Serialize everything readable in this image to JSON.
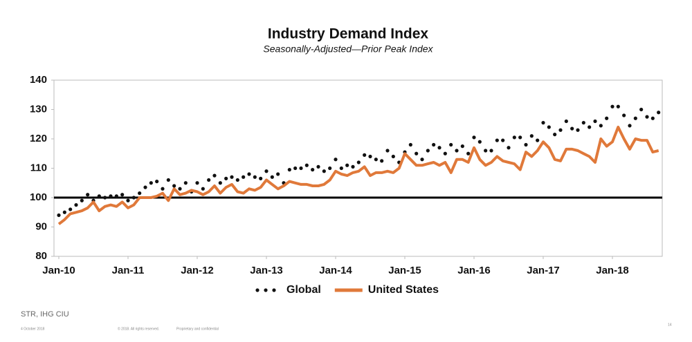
{
  "chart_data": {
    "type": "line",
    "title": "Industry Demand Index",
    "subtitle": "Seasonally-Adjusted—Prior Peak Index",
    "categories": [
      "Jan-10",
      null,
      null,
      null,
      null,
      null,
      null,
      null,
      null,
      null,
      null,
      null,
      "Jan-11",
      null,
      null,
      null,
      null,
      null,
      null,
      null,
      null,
      null,
      null,
      null,
      "Jan-12",
      null,
      null,
      null,
      null,
      null,
      null,
      null,
      null,
      null,
      null,
      null,
      "Jan-13",
      null,
      null,
      null,
      null,
      null,
      null,
      null,
      null,
      null,
      null,
      null,
      "Jan-14",
      null,
      null,
      null,
      null,
      null,
      null,
      null,
      null,
      null,
      null,
      null,
      "Jan-15",
      null,
      null,
      null,
      null,
      null,
      null,
      null,
      null,
      null,
      null,
      null,
      "Jan-16",
      null,
      null,
      null,
      null,
      null,
      null,
      null,
      null,
      null,
      null,
      null,
      "Jan-17",
      null,
      null,
      null,
      null,
      null,
      null,
      null,
      null,
      null,
      null,
      null,
      "Jan-18",
      null,
      null,
      null,
      null,
      null,
      null,
      null,
      null
    ],
    "series": [
      {
        "name": "Global",
        "style": "dots",
        "color": "#111111",
        "values": [
          94,
          95,
          96,
          97.5,
          99,
          101,
          99,
          100.5,
          100,
          100.5,
          100.5,
          101,
          99,
          100,
          101.5,
          103.5,
          105,
          105.5,
          103,
          106,
          104,
          103,
          105,
          102,
          105,
          103,
          106,
          107.5,
          105,
          106.5,
          107,
          106,
          107,
          108,
          107,
          106.5,
          109,
          107,
          108,
          105,
          109.5,
          110,
          110,
          111,
          109.5,
          110.5,
          109,
          110,
          113,
          110,
          111,
          110.5,
          112,
          114.5,
          114,
          113,
          112.5,
          116,
          114,
          112,
          115.5,
          118,
          115,
          113,
          116,
          118,
          117,
          115,
          118,
          116,
          117.5,
          115,
          120.5,
          119,
          116,
          116,
          119.5,
          119.5,
          117,
          120.5,
          120.5,
          118,
          121,
          119.5,
          125.5,
          124,
          121.5,
          123,
          126,
          123.5,
          123,
          125.5,
          124,
          126,
          124.5,
          127,
          131,
          131,
          128,
          124.5,
          127,
          130,
          127.5,
          127,
          129
        ]
      },
      {
        "name": "United States",
        "style": "line",
        "color": "#e0793a",
        "values": [
          91,
          92.5,
          94.5,
          95,
          95.5,
          96.5,
          98.5,
          95.5,
          97,
          97.5,
          97,
          98.5,
          96.5,
          97.5,
          100,
          100,
          100,
          100.5,
          101.5,
          99,
          103,
          101,
          101.5,
          102.5,
          102,
          101,
          102,
          104,
          101.5,
          103.5,
          104.5,
          102,
          101.5,
          103,
          102.5,
          103.5,
          106,
          104.5,
          103,
          104,
          105.5,
          105,
          104.5,
          104.5,
          104,
          104,
          104.5,
          106,
          109,
          108,
          107.5,
          108.5,
          109,
          110.5,
          107.5,
          108.5,
          108.5,
          109,
          108.5,
          110,
          115,
          113,
          111,
          111,
          111.5,
          112,
          111,
          112,
          108.5,
          113,
          113,
          112,
          117,
          113,
          111,
          112,
          114,
          112.5,
          112,
          111.5,
          109.5,
          115.5,
          114,
          116,
          119,
          117,
          113,
          112.5,
          116.5,
          116.5,
          116,
          115,
          114,
          112,
          120,
          117.5,
          119,
          124,
          120,
          116.5,
          120,
          119.5,
          119.5,
          115.5,
          116
        ]
      }
    ],
    "ylim": [
      80,
      140
    ],
    "yticks": [
      80,
      90,
      100,
      110,
      120,
      130,
      140
    ],
    "reference_line": 100,
    "grid": false,
    "legend": "bottom"
  },
  "footer": {
    "source": "STR, IHG CIU",
    "date": "4 October 2018",
    "copyright": "© 2018.  All rights reserved.",
    "confidential": "Proprietary and confidential",
    "page": "14"
  }
}
